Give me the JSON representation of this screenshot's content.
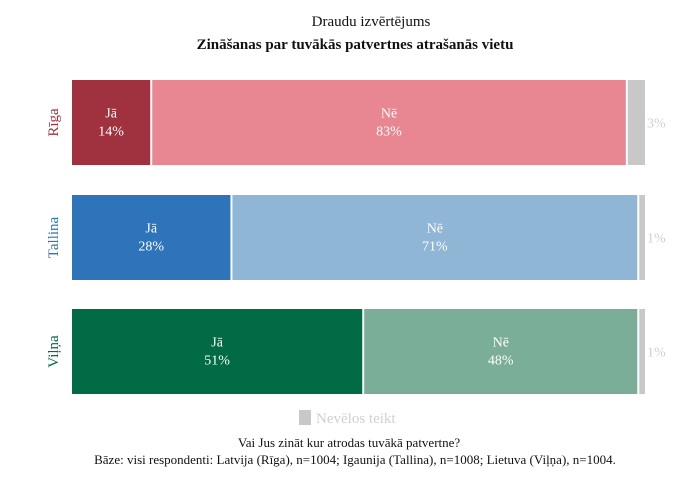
{
  "chart_data": {
    "type": "bar",
    "orientation": "horizontal",
    "stacked": true,
    "title": "Draudu izvērtējums",
    "subtitle": "Zināšanas par tuvākās patvertnes atrašanās vietu",
    "categories": [
      "Rīga",
      "Tallina",
      "Viļņa"
    ],
    "segment_labels": [
      "Jā",
      "Nē",
      ""
    ],
    "series": [
      {
        "name": "Jā",
        "values": [
          14,
          28,
          51
        ]
      },
      {
        "name": "Nē",
        "values": [
          83,
          71,
          48
        ]
      },
      {
        "name": "Nevēlos teikt",
        "values": [
          3,
          1,
          1
        ]
      }
    ],
    "category_colors": [
      {
        "yes": "#A0323F",
        "no": "#E88792",
        "label": "#A0323F"
      },
      {
        "yes": "#2E74BA",
        "no": "#8FB6D5",
        "label": "#2E74BA"
      },
      {
        "yes": "#006B45",
        "no": "#7AAE98",
        "label": "#006B45"
      }
    ],
    "other_color": "#C8C9C6",
    "other_label_color": "#D0D0D0",
    "xlim": [
      0,
      100
    ],
    "grid": false,
    "legend": {
      "position": "bottom",
      "entries": [
        "Nevēlos teikt"
      ]
    },
    "footnote": [
      "Vai Jus zināt kur atrodas tuvākā patvertne?",
      "Bāze: visi respondenti: Latvija (Rīga), n=1004; Igaunija (Tallina), n=1008; Lietuva (Viļņa), n=1004."
    ]
  }
}
